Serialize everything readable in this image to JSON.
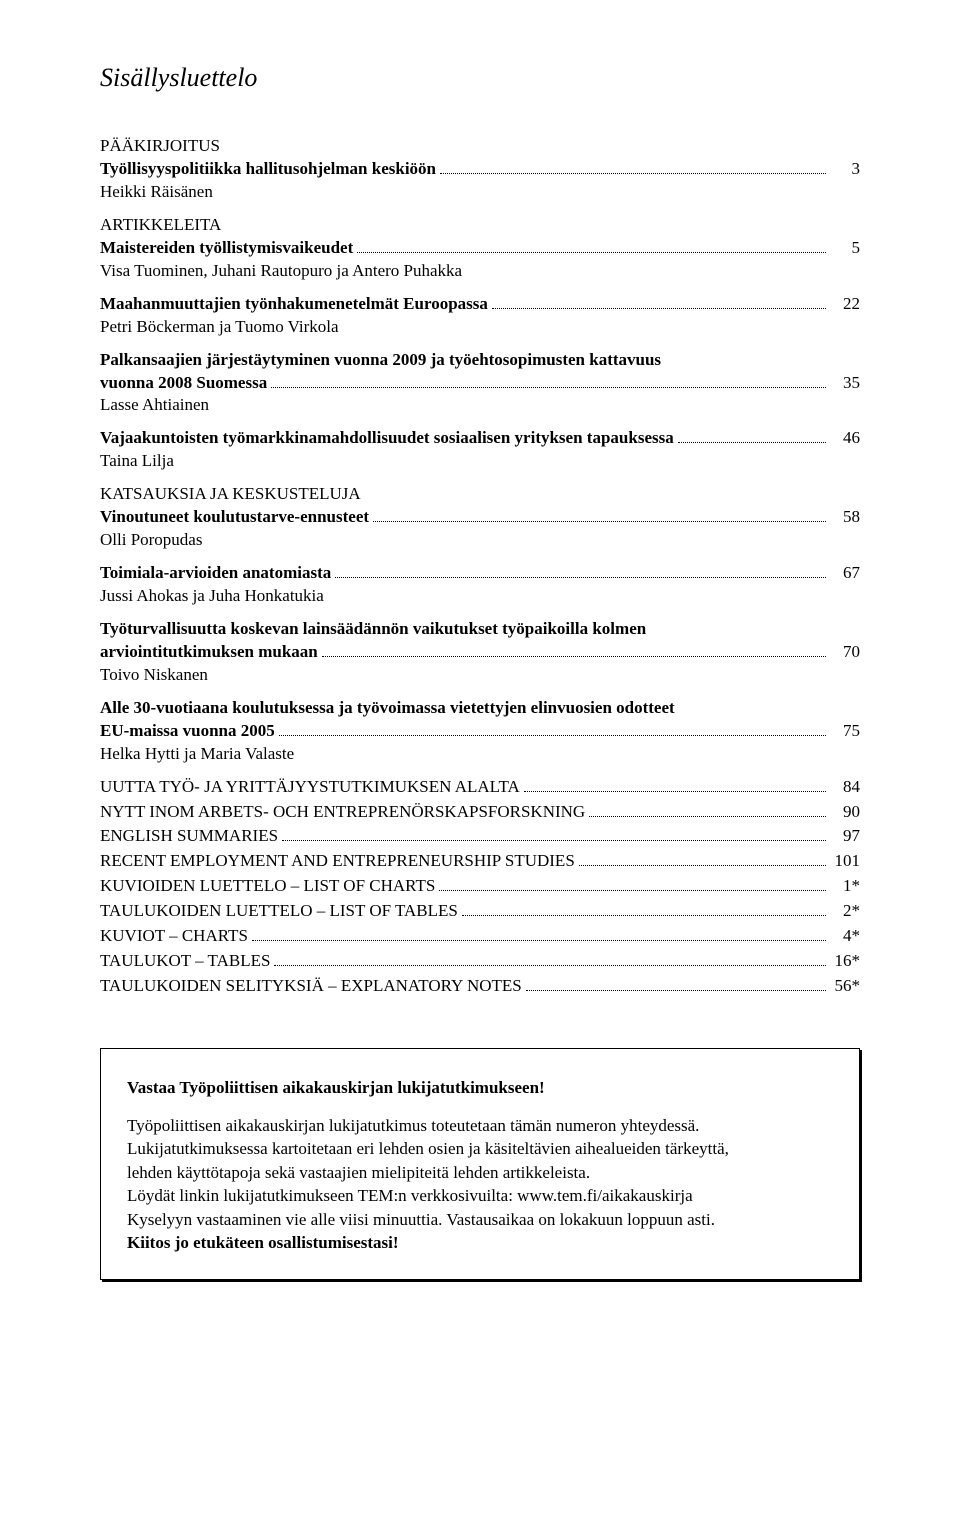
{
  "title": "Sisällysluettelo",
  "sections": [
    {
      "label": "PÄÄKIRJOITUS"
    }
  ],
  "entries": [
    {
      "title": "Työllisyyspolitiikka hallitusohjelman keskiöön",
      "page": "3",
      "author": "Heikki Räisänen",
      "bold": true,
      "section_after": "ARTIKKELEITA"
    },
    {
      "title": "Maistereiden työllistymisvaikeudet",
      "page": "5",
      "author": "Visa Tuominen, Juhani Rautopuro ja Antero Puhakka",
      "bold": true
    },
    {
      "title": "Maahanmuuttajien työnhakumenetelmät Euroopassa",
      "page": "22",
      "author": "Petri Böckerman ja Tuomo Virkola",
      "bold": true
    },
    {
      "title_lines": [
        "Palkansaajien järjestäytyminen vuonna 2009 ja työehtosopimusten kattavuus",
        "vuonna 2008 Suomessa"
      ],
      "page": "35",
      "author": "Lasse Ahtiainen",
      "bold": true
    },
    {
      "title": "Vajaakuntoisten työmarkkinamahdollisuudet sosiaalisen yrityksen tapauksessa",
      "page": "46",
      "author": "Taina Lilja",
      "bold": true,
      "section_after": "KATSAUKSIA JA KESKUSTELUJA"
    },
    {
      "title": "Vinoutuneet koulutustarve-ennusteet",
      "page": "58",
      "author": "Olli Poropudas",
      "bold": true
    },
    {
      "title": "Toimiala-arvioiden anatomiasta",
      "page": "67",
      "author": "Jussi Ahokas ja Juha Honkatukia",
      "bold": true
    },
    {
      "title_lines": [
        "Työturvallisuutta koskevan lainsäädännön vaikutukset työpaikoilla kolmen",
        "arviointitutkimuksen mukaan"
      ],
      "page": "70",
      "author": "Toivo Niskanen",
      "bold": true
    },
    {
      "title_lines": [
        "Alle 30-vuotiaana koulutuksessa ja työvoimassa vietettyjen elinvuosien odotteet",
        "EU-maissa vuonna 2005"
      ],
      "page": "75",
      "author": "Helka Hytti ja Maria Valaste",
      "bold": true
    }
  ],
  "flat_entries": [
    {
      "title": "UUTTA TYÖ- JA YRITTÄJYYSTUTKIMUKSEN ALALTA",
      "page": "84"
    },
    {
      "title": "NYTT INOM ARBETS- OCH ENTREPRENÖRSKAPSFORSKNING",
      "page": "90"
    },
    {
      "title": "ENGLISH SUMMARIES",
      "page": "97"
    },
    {
      "title": "RECENT EMPLOYMENT AND ENTREPRENEURSHIP STUDIES",
      "page": "101"
    },
    {
      "title": "KUVIOIDEN LUETTELO – LIST OF CHARTS",
      "page": "1*"
    },
    {
      "title": "TAULUKOIDEN LUETTELO – LIST OF TABLES",
      "page": "2*"
    },
    {
      "title": "KUVIOT – CHARTS",
      "page": "4*"
    },
    {
      "title": "TAULUKOT – TABLES",
      "page": "16*"
    },
    {
      "title": "TAULUKOIDEN SELITYKSIÄ – EXPLANATORY NOTES",
      "page": "56*"
    }
  ],
  "notice": {
    "title": "Vastaa Työpoliittisen aikakauskirjan lukijatutkimukseen!",
    "lines": [
      "Työpoliittisen aikakauskirjan lukijatutkimus toteutetaan tämän numeron yhteydessä.",
      "Lukijatutkimuksessa kartoitetaan eri lehden osien ja käsiteltävien aihealueiden tärkeyttä,",
      "lehden käyttötapoja sekä vastaajien mielipiteitä lehden artikkeleista.",
      "Löydät linkin lukijatutkimukseen TEM:n verkkosivuilta: www.tem.fi/aikakauskirja",
      "Kyselyyn vastaaminen vie alle viisi minuuttia. Vastausaikaa on lokakuun loppuun asti."
    ],
    "closing": "Kiitos jo etukäteen osallistumisestasi!"
  }
}
